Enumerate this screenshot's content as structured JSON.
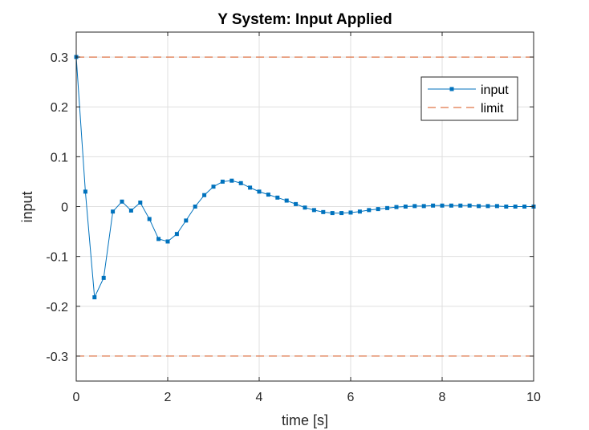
{
  "chart_data": {
    "type": "line",
    "title": "Y System: Input Applied",
    "xlabel": "time [s]",
    "ylabel": "input",
    "xlim": [
      0,
      10
    ],
    "ylim": [
      -0.35,
      0.35
    ],
    "xticks": [
      0,
      2,
      4,
      6,
      8,
      10
    ],
    "xtick_labels": [
      "0",
      "2",
      "4",
      "6",
      "8",
      "10"
    ],
    "yticks": [
      0.3,
      0.2,
      0.1,
      0,
      -0.1,
      -0.2,
      -0.3
    ],
    "ytick_labels": [
      "0.3",
      "0.2",
      "0.1",
      "0",
      "-0.1",
      "-0.2",
      "-0.3"
    ],
    "grid": true,
    "legend_position": "top-right",
    "series": [
      {
        "name": "input",
        "color": "#0072BD",
        "style": "solid-with-square-markers",
        "x": [
          0,
          0.2,
          0.4,
          0.6,
          0.8,
          1.0,
          1.2,
          1.4,
          1.6,
          1.8,
          2.0,
          2.2,
          2.4,
          2.6,
          2.8,
          3.0,
          3.2,
          3.4,
          3.6,
          3.8,
          4.0,
          4.2,
          4.4,
          4.6,
          4.8,
          5.0,
          5.2,
          5.4,
          5.6,
          5.8,
          6.0,
          6.2,
          6.4,
          6.6,
          6.8,
          7.0,
          7.2,
          7.4,
          7.6,
          7.8,
          8.0,
          8.2,
          8.4,
          8.6,
          8.8,
          9.0,
          9.2,
          9.4,
          9.6,
          9.8,
          10.0
        ],
        "y": [
          0.3,
          0.03,
          -0.182,
          -0.143,
          -0.01,
          0.01,
          -0.008,
          0.008,
          -0.025,
          -0.065,
          -0.07,
          -0.055,
          -0.028,
          0.0,
          0.023,
          0.04,
          0.05,
          0.052,
          0.047,
          0.038,
          0.03,
          0.024,
          0.018,
          0.012,
          0.005,
          -0.002,
          -0.007,
          -0.011,
          -0.013,
          -0.013,
          -0.012,
          -0.01,
          -0.007,
          -0.005,
          -0.003,
          -0.001,
          0.0,
          0.001,
          0.001,
          0.002,
          0.002,
          0.002,
          0.002,
          0.002,
          0.001,
          0.001,
          0.001,
          0.0,
          0.0,
          0.0,
          0.0
        ]
      },
      {
        "name": "limit",
        "color": "#D95319",
        "style": "dashed",
        "lines": [
          0.3,
          -0.3
        ]
      }
    ]
  }
}
